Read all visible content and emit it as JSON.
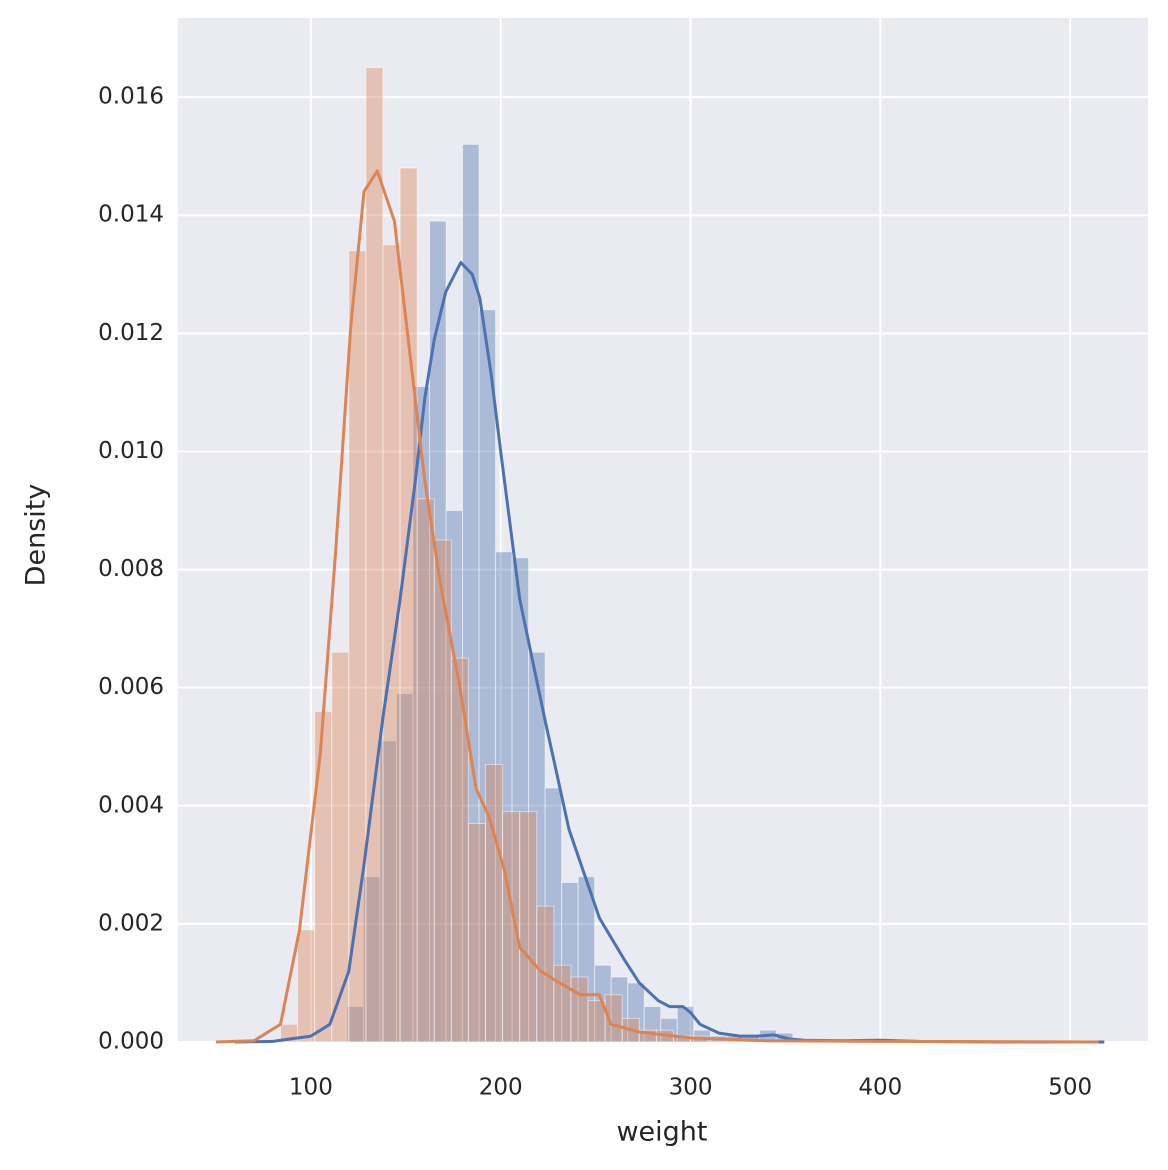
{
  "chart_data": {
    "type": "histogram",
    "xlabel": "weight",
    "ylabel": "Density",
    "xlim": [
      30,
      541
    ],
    "ylim": [
      0,
      0.01734
    ],
    "xticks": [
      100,
      200,
      300,
      400,
      500
    ],
    "yticks": [
      {
        "value": 0,
        "label": "0.000"
      },
      {
        "value": 0.002,
        "label": "0.002"
      },
      {
        "value": 0.004,
        "label": "0.004"
      },
      {
        "value": 0.006,
        "label": "0.006"
      },
      {
        "value": 0.008,
        "label": "0.008"
      },
      {
        "value": 0.01,
        "label": "0.010"
      },
      {
        "value": 0.012,
        "label": "0.012"
      },
      {
        "value": 0.014,
        "label": "0.014"
      },
      {
        "value": 0.016,
        "label": "0.016"
      }
    ],
    "grid": true,
    "series": [
      {
        "color": "#4c72b0",
        "bins": [
          119,
          127.7,
          136.4,
          145.1,
          153.8,
          162.5,
          171.2,
          179.9,
          188.6,
          197.3,
          206,
          214.7,
          223.4,
          232.1,
          240.8,
          249.5,
          258.2,
          266.9,
          275.6,
          284.3,
          293,
          301.7,
          310.4,
          319.1,
          327.8,
          336.5,
          345.2,
          353.9,
          362.6,
          371.3,
          380,
          388.7,
          397.4,
          406.1,
          414.8,
          423.5,
          432.2,
          440.9,
          449.6,
          458.3,
          467,
          475.7,
          484.4,
          493.1,
          501.8,
          510.5,
          519.2
        ],
        "values": [
          0.0006,
          0.0028,
          0.0051,
          0.0059,
          0.0111,
          0.0139,
          0.009,
          0.0152,
          0.0124,
          0.0083,
          0.0082,
          0.0066,
          0.0043,
          0.0027,
          0.0028,
          0.0013,
          0.0011,
          0.001,
          0.0006,
          0.0004,
          0.0006,
          0.0002,
          0.0001,
          0.0001,
          0.0001,
          0.0002,
          0.00015,
          0,
          0,
          0,
          3e-05,
          0,
          3e-05,
          0,
          0,
          0,
          0,
          0,
          0,
          0,
          0,
          0,
          0,
          0,
          0,
          0
        ],
        "kde": {
          "x": [
            60,
            80,
            100,
            110,
            120,
            128,
            138,
            147,
            155,
            160,
            165,
            171,
            179,
            185,
            189,
            195,
            200,
            210,
            223,
            236,
            252,
            265,
            273,
            283,
            289,
            296,
            300,
            305,
            315,
            326,
            335,
            344,
            352,
            360,
            380,
            400,
            420,
            460,
            518
          ],
          "y": [
            0,
            1e-05,
            0.0001,
            0.0003,
            0.0012,
            0.003,
            0.0055,
            0.0075,
            0.0095,
            0.0109,
            0.0119,
            0.0127,
            0.0132,
            0.013,
            0.0126,
            0.0113,
            0.01,
            0.0075,
            0.0055,
            0.0036,
            0.0021,
            0.0014,
            0.001,
            0.0007,
            0.0006,
            0.0006,
            0.0005,
            0.0003,
            0.00015,
            0.0001,
            0.0001,
            0.00012,
            5e-05,
            3e-05,
            2e-05,
            3e-05,
            1e-05,
            0,
            0
          ]
        }
      },
      {
        "color": "#dd8452",
        "bins": [
          84,
          93,
          102,
          111,
          120,
          129,
          138,
          147,
          156,
          165,
          174,
          183,
          192,
          201,
          210,
          219,
          228,
          237,
          246,
          255,
          264,
          273,
          282,
          291,
          300,
          309
        ],
        "values": [
          0.0003,
          0.0019,
          0.0056,
          0.0066,
          0.0134,
          0.0165,
          0.0135,
          0.0148,
          0.0092,
          0.0085,
          0.0065,
          0.0037,
          0.0047,
          0.0039,
          0.0039,
          0.0023,
          0.0013,
          0.0011,
          0.0007,
          0.0008,
          0.0004,
          0.0002,
          0.0002,
          0.0001,
          0.0001
        ],
        "kde": {
          "x": [
            50,
            70,
            84,
            94,
            105,
            113,
            121,
            128,
            135,
            144,
            152,
            160,
            168,
            178,
            187,
            194,
            202,
            210,
            221,
            231,
            242,
            252,
            258,
            273,
            300,
            340,
            400,
            515
          ],
          "y": [
            0,
            2e-05,
            0.0003,
            0.0019,
            0.0049,
            0.0083,
            0.0121,
            0.0144,
            0.01475,
            0.0139,
            0.0117,
            0.0095,
            0.0078,
            0.0061,
            0.0043,
            0.0038,
            0.0029,
            0.0016,
            0.0012,
            0.001,
            0.0008,
            0.0008,
            0.0003,
            0.00017,
            7e-05,
            2e-05,
            1e-05,
            0
          ]
        }
      }
    ]
  }
}
